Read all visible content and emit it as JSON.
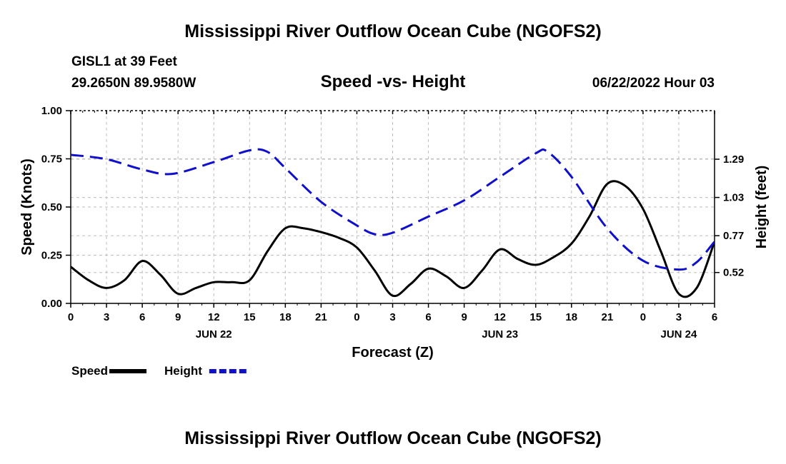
{
  "page": {
    "title_top": "Mississippi River Outflow Ocean Cube (NGOFS2)",
    "title_bottom": "Mississippi River Outflow Ocean Cube (NGOFS2)",
    "station": "GISL1 at 39 Feet",
    "coords": "29.2650N  89.9580W",
    "datetime": "06/22/2022 Hour 03"
  },
  "chart_data": {
    "type": "line",
    "title": "Speed -vs- Height",
    "xlabel": "Forecast (Z)",
    "ylabel_left": "Speed (Knots)",
    "ylabel_right": "Height (feet)",
    "x_range": [
      0,
      54
    ],
    "y_left_range": [
      0,
      1.0
    ],
    "y_right_range": [
      0.31,
      1.62
    ],
    "x_ticks": [
      {
        "x": 0,
        "label": "0"
      },
      {
        "x": 3,
        "label": "3"
      },
      {
        "x": 6,
        "label": "6"
      },
      {
        "x": 9,
        "label": "9"
      },
      {
        "x": 12,
        "label": "12"
      },
      {
        "x": 15,
        "label": "15"
      },
      {
        "x": 18,
        "label": "18"
      },
      {
        "x": 21,
        "label": "21"
      },
      {
        "x": 24,
        "label": "0"
      },
      {
        "x": 27,
        "label": "3"
      },
      {
        "x": 30,
        "label": "6"
      },
      {
        "x": 33,
        "label": "9"
      },
      {
        "x": 36,
        "label": "12"
      },
      {
        "x": 39,
        "label": "15"
      },
      {
        "x": 42,
        "label": "18"
      },
      {
        "x": 45,
        "label": "21"
      },
      {
        "x": 48,
        "label": "0"
      },
      {
        "x": 51,
        "label": "3"
      },
      {
        "x": 54,
        "label": "6"
      }
    ],
    "date_labels": [
      {
        "x": 12,
        "label": "JUN 22"
      },
      {
        "x": 36,
        "label": "JUN 23"
      },
      {
        "x": 51,
        "label": "JUN 24"
      }
    ],
    "y_left_ticks": [
      {
        "v": 0,
        "label": "0.00"
      },
      {
        "v": 0.25,
        "label": "0.25"
      },
      {
        "v": 0.5,
        "label": "0.50"
      },
      {
        "v": 0.75,
        "label": "0.75"
      },
      {
        "v": 1.0,
        "label": "1.00"
      }
    ],
    "y_right_ticks": [
      {
        "v": 0.52,
        "label": "0.52"
      },
      {
        "v": 0.77,
        "label": "0.77"
      },
      {
        "v": 1.03,
        "label": "1.03"
      },
      {
        "v": 1.29,
        "label": "1.29"
      }
    ],
    "series": [
      {
        "name": "Speed",
        "axis": "left",
        "color": "#000000",
        "dash": "none",
        "x": [
          0,
          1.5,
          3,
          4.5,
          6,
          7.5,
          9,
          10.5,
          12,
          13.5,
          15,
          16.5,
          18,
          19.5,
          21,
          22.5,
          24,
          25.5,
          27,
          28.5,
          30,
          31.5,
          33,
          34.5,
          36,
          37.5,
          39,
          40.5,
          42,
          43.5,
          45,
          46.5,
          48,
          49.5,
          51,
          52.5,
          54
        ],
        "values": [
          0.19,
          0.12,
          0.08,
          0.12,
          0.22,
          0.15,
          0.05,
          0.08,
          0.11,
          0.11,
          0.12,
          0.27,
          0.39,
          0.39,
          0.37,
          0.34,
          0.29,
          0.17,
          0.04,
          0.1,
          0.18,
          0.14,
          0.08,
          0.17,
          0.28,
          0.23,
          0.2,
          0.24,
          0.31,
          0.45,
          0.62,
          0.61,
          0.49,
          0.27,
          0.05,
          0.08,
          0.32
        ]
      },
      {
        "name": "Height",
        "axis": "right",
        "color": "#1010cc",
        "dash": "18,9",
        "x": [
          0,
          3,
          6,
          8.5,
          12,
          15,
          16.5,
          18,
          21,
          24,
          25.5,
          27,
          30,
          33,
          36,
          39,
          40,
          42,
          45,
          48,
          51,
          52.5,
          54
        ],
        "values": [
          1.32,
          1.29,
          1.22,
          1.19,
          1.27,
          1.35,
          1.34,
          1.23,
          1.0,
          0.84,
          0.78,
          0.79,
          0.9,
          1.01,
          1.17,
          1.33,
          1.34,
          1.17,
          0.82,
          0.6,
          0.54,
          0.59,
          0.73
        ]
      }
    ],
    "legend": [
      {
        "name": "Speed",
        "color": "#000000",
        "dash": "none"
      },
      {
        "name": "Height",
        "color": "#1010cc",
        "dash": "10,4"
      }
    ],
    "grid": true
  }
}
